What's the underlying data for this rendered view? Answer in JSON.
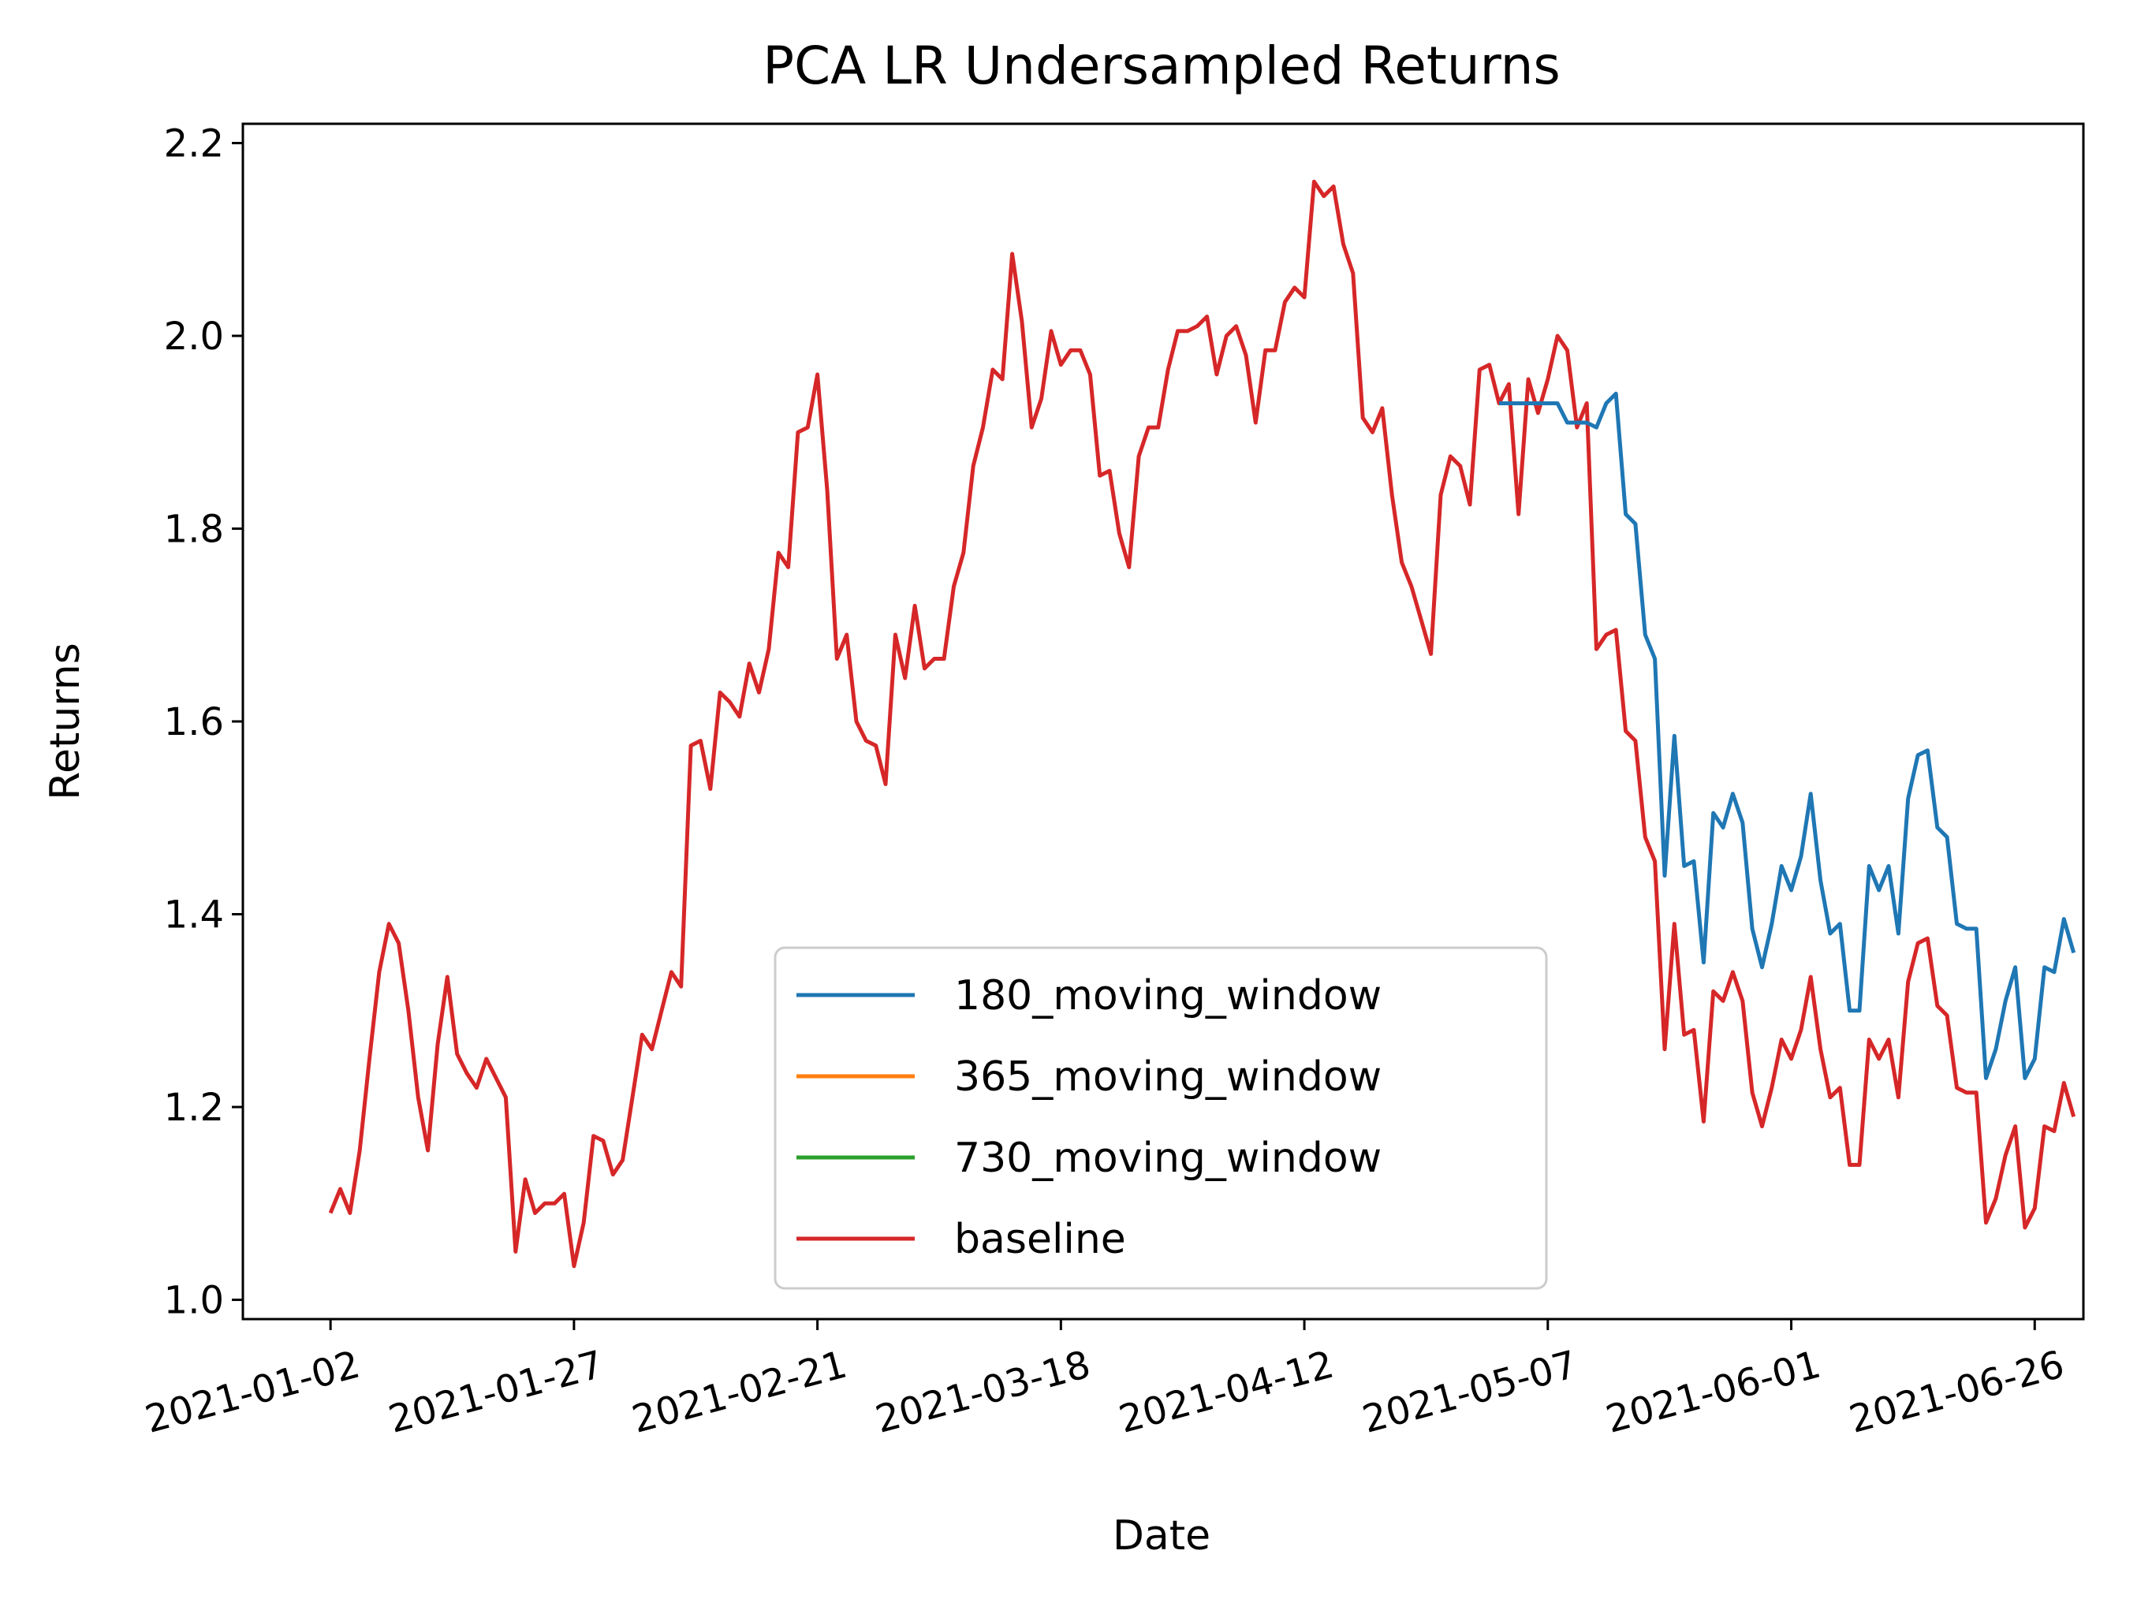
{
  "chart_data": {
    "type": "line",
    "title": "PCA LR Undersampled Returns",
    "xlabel": "Date",
    "ylabel": "Returns",
    "xlim": [
      "2020-12-24",
      "2021-07-01"
    ],
    "ylim": [
      0.98,
      2.22
    ],
    "x_ticks": [
      "2021-01-02",
      "2021-01-27",
      "2021-02-21",
      "2021-03-18",
      "2021-04-12",
      "2021-05-07",
      "2021-06-01",
      "2021-06-26"
    ],
    "y_ticks": [
      1.0,
      1.2,
      1.4,
      1.6,
      1.8,
      2.0,
      2.2
    ],
    "grid": false,
    "legend_position": "lower-center",
    "series": [
      {
        "name": "baseline",
        "color": "#d62728",
        "points": [
          [
            "2021-01-02",
            1.09
          ],
          [
            "2021-01-03",
            1.115
          ],
          [
            "2021-01-04",
            1.09
          ],
          [
            "2021-01-05",
            1.155
          ],
          [
            "2021-01-06",
            1.25
          ],
          [
            "2021-01-07",
            1.34
          ],
          [
            "2021-01-08",
            1.39
          ],
          [
            "2021-01-09",
            1.37
          ],
          [
            "2021-01-10",
            1.3
          ],
          [
            "2021-01-11",
            1.21
          ],
          [
            "2021-01-12",
            1.155
          ],
          [
            "2021-01-13",
            1.265
          ],
          [
            "2021-01-14",
            1.335
          ],
          [
            "2021-01-15",
            1.255
          ],
          [
            "2021-01-16",
            1.235
          ],
          [
            "2021-01-17",
            1.22
          ],
          [
            "2021-01-18",
            1.25
          ],
          [
            "2021-01-19",
            1.23
          ],
          [
            "2021-01-20",
            1.21
          ],
          [
            "2021-01-21",
            1.05
          ],
          [
            "2021-01-22",
            1.125
          ],
          [
            "2021-01-23",
            1.09
          ],
          [
            "2021-01-24",
            1.1
          ],
          [
            "2021-01-25",
            1.1
          ],
          [
            "2021-01-26",
            1.11
          ],
          [
            "2021-01-27",
            1.035
          ],
          [
            "2021-01-28",
            1.08
          ],
          [
            "2021-01-29",
            1.17
          ],
          [
            "2021-01-30",
            1.165
          ],
          [
            "2021-01-31",
            1.13
          ],
          [
            "2021-02-01",
            1.145
          ],
          [
            "2021-02-02",
            1.21
          ],
          [
            "2021-02-03",
            1.275
          ],
          [
            "2021-02-04",
            1.26
          ],
          [
            "2021-02-05",
            1.3
          ],
          [
            "2021-02-06",
            1.34
          ],
          [
            "2021-02-07",
            1.325
          ],
          [
            "2021-02-08",
            1.575
          ],
          [
            "2021-02-09",
            1.58
          ],
          [
            "2021-02-10",
            1.53
          ],
          [
            "2021-02-11",
            1.63
          ],
          [
            "2021-02-12",
            1.62
          ],
          [
            "2021-02-13",
            1.605
          ],
          [
            "2021-02-14",
            1.66
          ],
          [
            "2021-02-15",
            1.63
          ],
          [
            "2021-02-16",
            1.675
          ],
          [
            "2021-02-17",
            1.775
          ],
          [
            "2021-02-18",
            1.76
          ],
          [
            "2021-02-19",
            1.9
          ],
          [
            "2021-02-20",
            1.905
          ],
          [
            "2021-02-21",
            1.96
          ],
          [
            "2021-02-22",
            1.84
          ],
          [
            "2021-02-23",
            1.665
          ],
          [
            "2021-02-24",
            1.69
          ],
          [
            "2021-02-25",
            1.6
          ],
          [
            "2021-02-26",
            1.58
          ],
          [
            "2021-02-27",
            1.575
          ],
          [
            "2021-02-28",
            1.535
          ],
          [
            "2021-03-01",
            1.69
          ],
          [
            "2021-03-02",
            1.645
          ],
          [
            "2021-03-03",
            1.72
          ],
          [
            "2021-03-04",
            1.655
          ],
          [
            "2021-03-05",
            1.665
          ],
          [
            "2021-03-06",
            1.665
          ],
          [
            "2021-03-07",
            1.74
          ],
          [
            "2021-03-08",
            1.775
          ],
          [
            "2021-03-09",
            1.865
          ],
          [
            "2021-03-10",
            1.905
          ],
          [
            "2021-03-11",
            1.965
          ],
          [
            "2021-03-12",
            1.955
          ],
          [
            "2021-03-13",
            2.085
          ],
          [
            "2021-03-14",
            2.015
          ],
          [
            "2021-03-15",
            1.905
          ],
          [
            "2021-03-16",
            1.935
          ],
          [
            "2021-03-17",
            2.005
          ],
          [
            "2021-03-18",
            1.97
          ],
          [
            "2021-03-19",
            1.985
          ],
          [
            "2021-03-20",
            1.985
          ],
          [
            "2021-03-21",
            1.96
          ],
          [
            "2021-03-22",
            1.855
          ],
          [
            "2021-03-23",
            1.86
          ],
          [
            "2021-03-24",
            1.795
          ],
          [
            "2021-03-25",
            1.76
          ],
          [
            "2021-03-26",
            1.875
          ],
          [
            "2021-03-27",
            1.905
          ],
          [
            "2021-03-28",
            1.905
          ],
          [
            "2021-03-29",
            1.965
          ],
          [
            "2021-03-30",
            2.005
          ],
          [
            "2021-03-31",
            2.005
          ],
          [
            "2021-04-01",
            2.01
          ],
          [
            "2021-04-02",
            2.02
          ],
          [
            "2021-04-03",
            1.96
          ],
          [
            "2021-04-04",
            2.0
          ],
          [
            "2021-04-05",
            2.01
          ],
          [
            "2021-04-06",
            1.98
          ],
          [
            "2021-04-07",
            1.91
          ],
          [
            "2021-04-08",
            1.985
          ],
          [
            "2021-04-09",
            1.985
          ],
          [
            "2021-04-10",
            2.035
          ],
          [
            "2021-04-11",
            2.05
          ],
          [
            "2021-04-12",
            2.04
          ],
          [
            "2021-04-13",
            2.16
          ],
          [
            "2021-04-14",
            2.145
          ],
          [
            "2021-04-15",
            2.155
          ],
          [
            "2021-04-16",
            2.095
          ],
          [
            "2021-04-17",
            2.065
          ],
          [
            "2021-04-18",
            1.915
          ],
          [
            "2021-04-19",
            1.9
          ],
          [
            "2021-04-20",
            1.925
          ],
          [
            "2021-04-21",
            1.835
          ],
          [
            "2021-04-22",
            1.765
          ],
          [
            "2021-04-23",
            1.74
          ],
          [
            "2021-04-24",
            1.705
          ],
          [
            "2021-04-25",
            1.67
          ],
          [
            "2021-04-26",
            1.835
          ],
          [
            "2021-04-27",
            1.875
          ],
          [
            "2021-04-28",
            1.865
          ],
          [
            "2021-04-29",
            1.825
          ],
          [
            "2021-04-30",
            1.965
          ],
          [
            "2021-05-01",
            1.97
          ],
          [
            "2021-05-02",
            1.93
          ],
          [
            "2021-05-03",
            1.95
          ],
          [
            "2021-05-04",
            1.815
          ],
          [
            "2021-05-05",
            1.955
          ],
          [
            "2021-05-06",
            1.92
          ],
          [
            "2021-05-07",
            1.955
          ],
          [
            "2021-05-08",
            2.0
          ],
          [
            "2021-05-09",
            1.985
          ],
          [
            "2021-05-10",
            1.905
          ],
          [
            "2021-05-11",
            1.93
          ],
          [
            "2021-05-12",
            1.675
          ],
          [
            "2021-05-13",
            1.69
          ],
          [
            "2021-05-14",
            1.695
          ],
          [
            "2021-05-15",
            1.59
          ],
          [
            "2021-05-16",
            1.58
          ],
          [
            "2021-05-17",
            1.48
          ],
          [
            "2021-05-18",
            1.455
          ],
          [
            "2021-05-19",
            1.26
          ],
          [
            "2021-05-20",
            1.39
          ],
          [
            "2021-05-21",
            1.275
          ],
          [
            "2021-05-22",
            1.28
          ],
          [
            "2021-05-23",
            1.185
          ],
          [
            "2021-05-24",
            1.32
          ],
          [
            "2021-05-25",
            1.31
          ],
          [
            "2021-05-26",
            1.34
          ],
          [
            "2021-05-27",
            1.31
          ],
          [
            "2021-05-28",
            1.215
          ],
          [
            "2021-05-29",
            1.18
          ],
          [
            "2021-05-30",
            1.22
          ],
          [
            "2021-05-31",
            1.27
          ],
          [
            "2021-06-01",
            1.25
          ],
          [
            "2021-06-02",
            1.28
          ],
          [
            "2021-06-03",
            1.335
          ],
          [
            "2021-06-04",
            1.26
          ],
          [
            "2021-06-05",
            1.21
          ],
          [
            "2021-06-06",
            1.22
          ],
          [
            "2021-06-07",
            1.14
          ],
          [
            "2021-06-08",
            1.14
          ],
          [
            "2021-06-09",
            1.27
          ],
          [
            "2021-06-10",
            1.25
          ],
          [
            "2021-06-11",
            1.27
          ],
          [
            "2021-06-12",
            1.21
          ],
          [
            "2021-06-13",
            1.33
          ],
          [
            "2021-06-14",
            1.37
          ],
          [
            "2021-06-15",
            1.375
          ],
          [
            "2021-06-16",
            1.305
          ],
          [
            "2021-06-17",
            1.295
          ],
          [
            "2021-06-18",
            1.22
          ],
          [
            "2021-06-19",
            1.215
          ],
          [
            "2021-06-20",
            1.215
          ],
          [
            "2021-06-21",
            1.08
          ],
          [
            "2021-06-22",
            1.105
          ],
          [
            "2021-06-23",
            1.15
          ],
          [
            "2021-06-24",
            1.18
          ],
          [
            "2021-06-25",
            1.075
          ],
          [
            "2021-06-26",
            1.095
          ],
          [
            "2021-06-27",
            1.18
          ],
          [
            "2021-06-28",
            1.175
          ],
          [
            "2021-06-29",
            1.225
          ],
          [
            "2021-06-30",
            1.19
          ]
        ]
      },
      {
        "name": "180_moving_window",
        "color": "#1f77b4",
        "points": [
          [
            "2021-05-02",
            1.93
          ],
          [
            "2021-05-03",
            1.93
          ],
          [
            "2021-05-04",
            1.93
          ],
          [
            "2021-05-05",
            1.93
          ],
          [
            "2021-05-06",
            1.93
          ],
          [
            "2021-05-07",
            1.93
          ],
          [
            "2021-05-08",
            1.93
          ],
          [
            "2021-05-09",
            1.91
          ],
          [
            "2021-05-10",
            1.91
          ],
          [
            "2021-05-11",
            1.91
          ],
          [
            "2021-05-12",
            1.905
          ],
          [
            "2021-05-13",
            1.93
          ],
          [
            "2021-05-14",
            1.94
          ],
          [
            "2021-05-15",
            1.815
          ],
          [
            "2021-05-16",
            1.805
          ],
          [
            "2021-05-17",
            1.69
          ],
          [
            "2021-05-18",
            1.665
          ],
          [
            "2021-05-19",
            1.44
          ],
          [
            "2021-05-20",
            1.585
          ],
          [
            "2021-05-21",
            1.45
          ],
          [
            "2021-05-22",
            1.455
          ],
          [
            "2021-05-23",
            1.35
          ],
          [
            "2021-05-24",
            1.505
          ],
          [
            "2021-05-25",
            1.49
          ],
          [
            "2021-05-26",
            1.525
          ],
          [
            "2021-05-27",
            1.495
          ],
          [
            "2021-05-28",
            1.385
          ],
          [
            "2021-05-29",
            1.345
          ],
          [
            "2021-05-30",
            1.39
          ],
          [
            "2021-05-31",
            1.45
          ],
          [
            "2021-06-01",
            1.425
          ],
          [
            "2021-06-02",
            1.46
          ],
          [
            "2021-06-03",
            1.525
          ],
          [
            "2021-06-04",
            1.435
          ],
          [
            "2021-06-05",
            1.38
          ],
          [
            "2021-06-06",
            1.39
          ],
          [
            "2021-06-07",
            1.3
          ],
          [
            "2021-06-08",
            1.3
          ],
          [
            "2021-06-09",
            1.45
          ],
          [
            "2021-06-10",
            1.425
          ],
          [
            "2021-06-11",
            1.45
          ],
          [
            "2021-06-12",
            1.38
          ],
          [
            "2021-06-13",
            1.52
          ],
          [
            "2021-06-14",
            1.565
          ],
          [
            "2021-06-15",
            1.57
          ],
          [
            "2021-06-16",
            1.49
          ],
          [
            "2021-06-17",
            1.48
          ],
          [
            "2021-06-18",
            1.39
          ],
          [
            "2021-06-19",
            1.385
          ],
          [
            "2021-06-20",
            1.385
          ],
          [
            "2021-06-21",
            1.23
          ],
          [
            "2021-06-22",
            1.26
          ],
          [
            "2021-06-23",
            1.31
          ],
          [
            "2021-06-24",
            1.345
          ],
          [
            "2021-06-25",
            1.23
          ],
          [
            "2021-06-26",
            1.25
          ],
          [
            "2021-06-27",
            1.345
          ],
          [
            "2021-06-28",
            1.34
          ],
          [
            "2021-06-29",
            1.395
          ],
          [
            "2021-06-30",
            1.36
          ]
        ]
      },
      {
        "name": "365_moving_window",
        "color": "#ff7f0e",
        "points": []
      },
      {
        "name": "730_moving_window",
        "color": "#2ca02c",
        "points": []
      }
    ],
    "legend": [
      "180_moving_window",
      "365_moving_window",
      "730_moving_window",
      "baseline"
    ]
  }
}
